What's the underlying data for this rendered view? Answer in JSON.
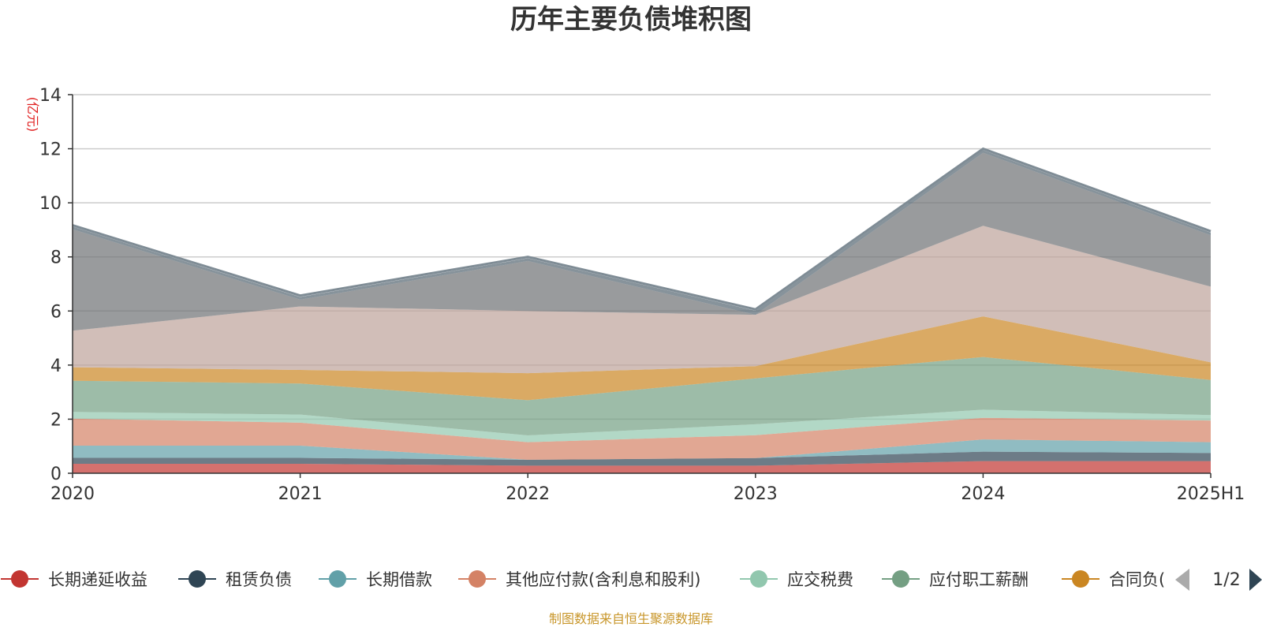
{
  "chart_data": {
    "type": "area",
    "stacked": true,
    "title": "历年主要负债堆积图",
    "ylabel": "(亿元)",
    "xlabel": "",
    "categories": [
      "2020",
      "2021",
      "2022",
      "2023",
      "2024",
      "2025H1"
    ],
    "ylim": [
      0,
      14
    ],
    "yticks": [
      0,
      2,
      4,
      6,
      8,
      10,
      12,
      14
    ],
    "grid": true,
    "series": [
      {
        "name": "长期递延收益",
        "color": "#c23531",
        "values": [
          0.35,
          0.35,
          0.28,
          0.28,
          0.45,
          0.45
        ]
      },
      {
        "name": "租赁负债",
        "color": "#2f4554",
        "values": [
          0.22,
          0.22,
          0.22,
          0.28,
          0.35,
          0.3
        ]
      },
      {
        "name": "长期借款",
        "color": "#61a0a8",
        "values": [
          0.45,
          0.45,
          0.0,
          0.0,
          0.45,
          0.4
        ]
      },
      {
        "name": "其他应付款(含利息和股利)",
        "color": "#d48265",
        "values": [
          1.0,
          0.85,
          0.65,
          0.85,
          0.8,
          0.8
        ]
      },
      {
        "name": "应交税费",
        "color": "#91c7ae",
        "values": [
          0.25,
          0.3,
          0.25,
          0.4,
          0.3,
          0.2
        ]
      },
      {
        "name": "应付职工薪酬",
        "color": "#749f83",
        "values": [
          1.15,
          1.15,
          1.3,
          1.7,
          1.95,
          1.3
        ]
      },
      {
        "name": "合同负债",
        "color": "#ca8622",
        "values": [
          0.5,
          0.5,
          1.0,
          0.45,
          1.5,
          0.65
        ]
      },
      {
        "name": "",
        "color": "#bda29a",
        "values": [
          1.35,
          2.35,
          2.3,
          1.9,
          3.35,
          2.8
        ]
      },
      {
        "name": "",
        "color": "#6e7074",
        "values": [
          3.75,
          0.25,
          1.85,
          0.0,
          2.7,
          1.9
        ]
      },
      {
        "name": "",
        "color": "#546570",
        "values": [
          0.1,
          0.1,
          0.1,
          0.15,
          0.1,
          0.1
        ]
      },
      {
        "name": "",
        "color": "#c4ccd3",
        "values": [
          0.05,
          0.05,
          0.05,
          0.05,
          0.05,
          0.05
        ]
      }
    ]
  },
  "legend": {
    "position": "bottom",
    "page_label": "1/2",
    "visible_items": [
      "长期递延收益",
      "租赁负债",
      "长期借款",
      "其他应付款(含利息和股利)",
      "应交税费",
      "应付职工薪酬",
      "合同负债"
    ],
    "last_item_display": "合同负("
  },
  "source": "制图数据来自恒生聚源数据库"
}
